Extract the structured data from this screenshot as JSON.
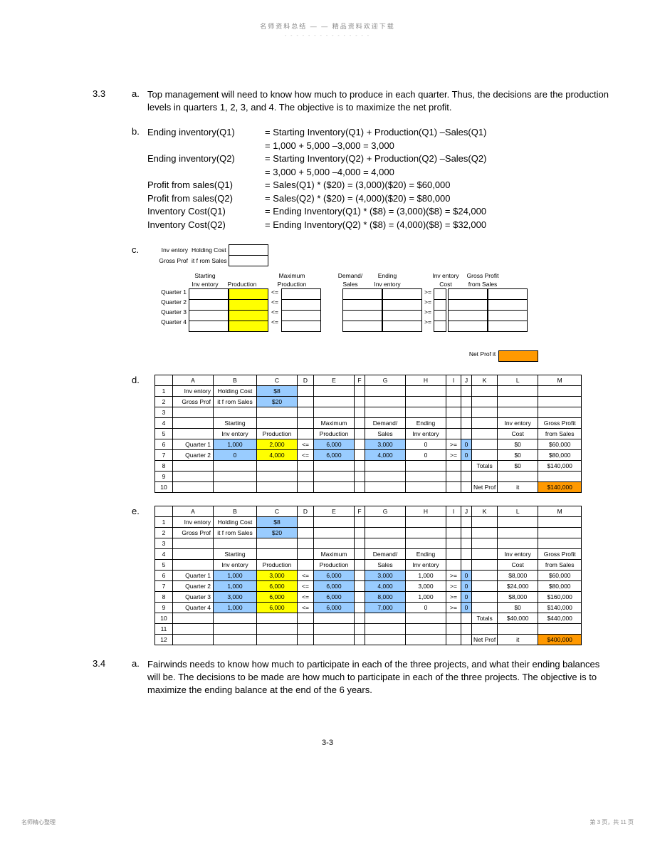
{
  "header": {
    "top": "名师资料总结 — — 精品资料欢迎下载",
    "dashes": "- - - - - - - - - - - - - - -"
  },
  "q33": {
    "num": "3.3",
    "a_letter": "a.",
    "a_text": "Top management will need to know how much to produce in each quarter. Thus, the decisions are the production levels in quarters 1, 2, 3, and 4. The objective is to maximize the net profit.",
    "b_letter": "b.",
    "b_rows": [
      {
        "label": "Ending inventory(Q1)",
        "val": "= Starting Inventory(Q1) + Production(Q1) –Sales(Q1)"
      },
      {
        "label": "",
        "val": "= 1,000 + 5,000 –3,000 = 3,000"
      },
      {
        "label": "Ending inventory(Q2)",
        "val": "= Starting Inventory(Q2) + Production(Q2) –Sales(Q2)"
      },
      {
        "label": "",
        "val": "= 3,000 + 5,000 –4,000 = 4,000"
      },
      {
        "label": "Profit from sales(Q1)",
        "val": "= Sales(Q1) * ($20) = (3,000)($20) = $60,000"
      },
      {
        "label": "Profit from sales(Q2)",
        "val": "= Sales(Q2) * ($20) = (4,000)($20) = $80,000"
      },
      {
        "label": "Inventory Cost(Q1)",
        "val": "= Ending Inventory(Q1) * ($8) = (3,000)($8) = $24,000"
      },
      {
        "label": "Inventory Cost(Q2)",
        "val": "= Ending Inventory(Q2) * ($8) = (4,000)($8) = $32,000"
      }
    ],
    "c_letter": "c.",
    "c": {
      "r1a": "Inv entory",
      "r1b": "Holding Cost",
      "r2a": "Gross Prof",
      "r2b": "it f rom Sales",
      "h_start": "Starting",
      "h_inv": "Inv entory",
      "h_prod": "Production",
      "h_max": "Maximum",
      "h_prod2": "Production",
      "h_dem": "Demand/",
      "h_sales": "Sales",
      "h_end": "Ending",
      "h_inv2": "Inv entory",
      "h_ic": "Inv entory",
      "h_cost": "Cost",
      "h_gp": "Gross Profit",
      "h_fs": "from Sales",
      "q1": "Quarter 1",
      "q2": "Quarter 2",
      "q3": "Quarter 3",
      "q4": "Quarter 4",
      "le": "<=",
      "ge": ">=",
      "np": "Net Prof",
      "np2": "it"
    },
    "d_letter": "d.",
    "d": {
      "cols": [
        "",
        "A",
        "B",
        "C",
        "D",
        "E",
        "F",
        "G",
        "H",
        "I",
        "J",
        "K",
        "L",
        "M"
      ],
      "r1": [
        "1",
        "Inv entory",
        "Holding Cost",
        "$8",
        "",
        "",
        "",
        "",
        "",
        "",
        "",
        "",
        "",
        ""
      ],
      "r2": [
        "2",
        "Gross Prof",
        "it f rom Sales",
        "$20",
        "",
        "",
        "",
        "",
        "",
        "",
        "",
        "",
        "",
        ""
      ],
      "r3": [
        "3",
        "",
        "",
        "",
        "",
        "",
        "",
        "",
        "",
        "",
        "",
        "",
        "",
        ""
      ],
      "r4": [
        "4",
        "",
        "Starting",
        "",
        "",
        "Maximum",
        "",
        "Demand/",
        "Ending",
        "",
        "",
        "",
        "Inv entory",
        "Gross Profit"
      ],
      "r5": [
        "5",
        "",
        "Inv entory",
        "Production",
        "",
        "Production",
        "",
        "Sales",
        "Inv entory",
        "",
        "",
        "",
        "Cost",
        "from Sales"
      ],
      "r6": [
        "6",
        "Quarter 1",
        "1,000",
        "2,000",
        "<=",
        "6,000",
        "",
        "3,000",
        "0",
        ">=",
        "0",
        "",
        "$0",
        "$60,000"
      ],
      "r7": [
        "7",
        "Quarter 2",
        "0",
        "4,000",
        "<=",
        "6,000",
        "",
        "4,000",
        "0",
        ">=",
        "0",
        "",
        "$0",
        "$80,000"
      ],
      "r8": [
        "8",
        "",
        "",
        "",
        "",
        "",
        "",
        "",
        "",
        "",
        "",
        "Totals",
        "$0",
        "$140,000"
      ],
      "r9": [
        "9",
        "",
        "",
        "",
        "",
        "",
        "",
        "",
        "",
        "",
        "",
        "",
        "",
        ""
      ],
      "r10": [
        "10",
        "",
        "",
        "",
        "",
        "",
        "",
        "",
        "",
        "",
        "",
        "Net Prof",
        "it",
        "$140,000"
      ]
    },
    "e_letter": "e.",
    "e": {
      "cols": [
        "",
        "A",
        "B",
        "C",
        "D",
        "E",
        "F",
        "G",
        "H",
        "I",
        "J",
        "K",
        "L",
        "M"
      ],
      "r1": [
        "1",
        "Inv entory",
        "Holding Cost",
        "$8",
        "",
        "",
        "",
        "",
        "",
        "",
        "",
        "",
        "",
        ""
      ],
      "r2": [
        "2",
        "Gross Prof",
        "it f rom Sales",
        "$20",
        "",
        "",
        "",
        "",
        "",
        "",
        "",
        "",
        "",
        ""
      ],
      "r3": [
        "3",
        "",
        "",
        "",
        "",
        "",
        "",
        "",
        "",
        "",
        "",
        "",
        "",
        ""
      ],
      "r4": [
        "4",
        "",
        "Starting",
        "",
        "",
        "Maximum",
        "",
        "Demand/",
        "Ending",
        "",
        "",
        "",
        "Inv entory",
        "Gross Profit"
      ],
      "r5": [
        "5",
        "",
        "Inv entory",
        "Production",
        "",
        "Production",
        "",
        "Sales",
        "Inv entory",
        "",
        "",
        "",
        "Cost",
        "from Sales"
      ],
      "r6": [
        "6",
        "Quarter 1",
        "1,000",
        "3,000",
        "<=",
        "6,000",
        "",
        "3,000",
        "1,000",
        ">=",
        "0",
        "",
        "$8,000",
        "$60,000"
      ],
      "r7": [
        "7",
        "Quarter 2",
        "1,000",
        "6,000",
        "<=",
        "6,000",
        "",
        "4,000",
        "3,000",
        ">=",
        "0",
        "",
        "$24,000",
        "$80,000"
      ],
      "r8": [
        "8",
        "Quarter 3",
        "3,000",
        "6,000",
        "<=",
        "6,000",
        "",
        "8,000",
        "1,000",
        ">=",
        "0",
        "",
        "$8,000",
        "$160,000"
      ],
      "r9": [
        "9",
        "Quarter 4",
        "1,000",
        "6,000",
        "<=",
        "6,000",
        "",
        "7,000",
        "0",
        ">=",
        "0",
        "",
        "$0",
        "$140,000"
      ],
      "r10": [
        "10",
        "",
        "",
        "",
        "",
        "",
        "",
        "",
        "",
        "",
        "",
        "Totals",
        "$40,000",
        "$440,000"
      ],
      "r11": [
        "11",
        "",
        "",
        "",
        "",
        "",
        "",
        "",
        "",
        "",
        "",
        "",
        "",
        ""
      ],
      "r12": [
        "12",
        "",
        "",
        "",
        "",
        "",
        "",
        "",
        "",
        "",
        "",
        "Net Prof",
        "it",
        "$400,000"
      ]
    }
  },
  "q34": {
    "num": "3.4",
    "a_letter": "a.",
    "a_text": "Fairwinds needs to know how much to participate in each of the three projects, and what their ending balances will be. The decisions to be made are how much to participate in each of the three projects. The objective is to maximize the ending balance at the end of the 6 years."
  },
  "footer": {
    "page": "3-3",
    "left": "名师精心整理",
    "right": "第 3 页，共 11 页"
  }
}
